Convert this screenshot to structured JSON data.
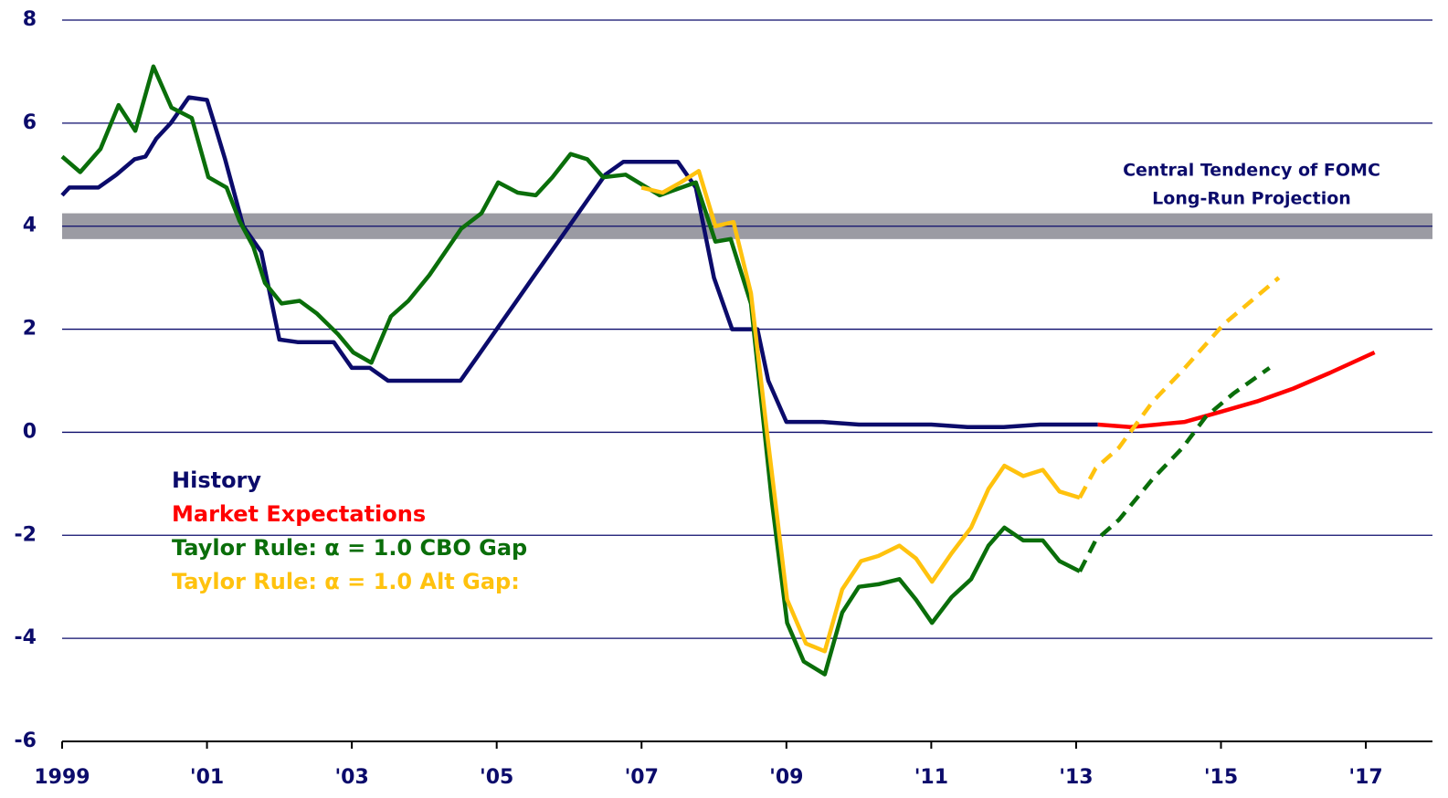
{
  "chart_data": {
    "type": "line",
    "xlim": [
      1999,
      2017.92
    ],
    "ylim": [
      -6,
      8
    ],
    "yticks": [
      -6,
      -4,
      -2,
      0,
      2,
      4,
      6,
      8
    ],
    "xticks": [
      {
        "value": 1999,
        "label": "1999"
      },
      {
        "value": 2001,
        "label": "'01"
      },
      {
        "value": 2003,
        "label": "'03"
      },
      {
        "value": 2005,
        "label": "'05"
      },
      {
        "value": 2007,
        "label": "'07"
      },
      {
        "value": 2009,
        "label": "'09"
      },
      {
        "value": 2011,
        "label": "'11"
      },
      {
        "value": 2013,
        "label": "'13"
      },
      {
        "value": 2015,
        "label": "'15"
      },
      {
        "value": 2017,
        "label": "'17"
      }
    ],
    "grid": true,
    "legend": "center-left",
    "band": {
      "range": [
        3.75,
        4.25
      ],
      "color": "#9b9ba3",
      "label": [
        "Central Tendency of FOMC",
        "Long-Run Projection"
      ]
    },
    "series": [
      {
        "name": "History",
        "color": "#0b0b6b",
        "x": [
          1999,
          1999.1,
          1999.25,
          1999.5,
          1999.75,
          2000,
          2000.15,
          2000.3,
          2000.5,
          2000.75,
          2001,
          2001.1,
          2001.25,
          2001.5,
          2001.75,
          2002,
          2002.25,
          2002.75,
          2003,
          2003.25,
          2003.5,
          2004,
          2004.5,
          2004.75,
          2005,
          2005.25,
          2005.5,
          2005.75,
          2006,
          2006.25,
          2006.5,
          2006.75,
          2007,
          2007.5,
          2007.75,
          2008,
          2008.25,
          2008.6,
          2008.75,
          2009,
          2009.5,
          2010,
          2011,
          2011.5,
          2012,
          2012.5,
          2013,
          2013.3
        ],
        "values": [
          4.6,
          4.75,
          4.75,
          4.75,
          5.0,
          5.3,
          5.35,
          5.7,
          6.0,
          6.5,
          6.45,
          6.0,
          5.3,
          4.0,
          3.5,
          1.8,
          1.75,
          1.75,
          1.25,
          1.25,
          1.0,
          1.0,
          1.0,
          1.5,
          2.0,
          2.5,
          3.0,
          3.5,
          4.0,
          4.5,
          5.0,
          5.25,
          5.25,
          5.25,
          4.75,
          3.0,
          2.0,
          2.0,
          1.0,
          0.2,
          0.2,
          0.15,
          0.15,
          0.1,
          0.1,
          0.15,
          0.15,
          0.15
        ]
      },
      {
        "name": "Market Expectations",
        "color": "#ff0000",
        "x": [
          2013.3,
          2013.75,
          2014.5,
          2015,
          2015.5,
          2016,
          2016.5,
          2017.12
        ],
        "values": [
          0.15,
          0.1,
          0.2,
          0.4,
          0.6,
          0.85,
          1.15,
          1.55
        ]
      },
      {
        "name": "Taylor Rule: α = 1.0 CBO Gap",
        "color": "#0a6e0a",
        "dashed_after": 2013.05,
        "x": [
          1999,
          1999.25,
          1999.53,
          1999.78,
          2000.01,
          2000.26,
          2000.51,
          2000.79,
          2001.02,
          2001.27,
          2001.45,
          2001.64,
          2001.8,
          2002.03,
          2002.28,
          2002.52,
          2002.81,
          2003.02,
          2003.27,
          2003.54,
          2003.78,
          2004.07,
          2004.51,
          2004.79,
          2005.02,
          2005.29,
          2005.54,
          2005.77,
          2006.02,
          2006.25,
          2006.47,
          2006.78,
          2007.25,
          2007.75,
          2008.02,
          2008.23,
          2008.51,
          2008.8,
          2009.01,
          2009.24,
          2009.53,
          2009.77,
          2010,
          2010.27,
          2010.56,
          2010.79,
          2011.01,
          2011.28,
          2011.55,
          2011.79,
          2012.01,
          2012.27,
          2012.54,
          2012.77,
          2013.05,
          2013.27,
          2013.59,
          2014.06,
          2014.47,
          2014.79,
          2015.17,
          2015.67
        ],
        "values": [
          5.35,
          5.05,
          5.5,
          6.35,
          5.85,
          7.1,
          6.3,
          6.1,
          4.95,
          4.75,
          4.1,
          3.6,
          2.9,
          2.5,
          2.55,
          2.3,
          1.9,
          1.55,
          1.35,
          2.25,
          2.55,
          3.05,
          3.95,
          4.25,
          4.85,
          4.65,
          4.6,
          4.95,
          5.4,
          5.3,
          4.95,
          5.0,
          4.6,
          4.85,
          3.7,
          3.75,
          2.5,
          -1.35,
          -3.7,
          -4.45,
          -4.7,
          -3.5,
          -3.0,
          -2.95,
          -2.85,
          -3.25,
          -3.7,
          -3.2,
          -2.85,
          -2.2,
          -1.85,
          -2.1,
          -2.1,
          -2.5,
          -2.7,
          -2.1,
          -1.7,
          -0.9,
          -0.3,
          0.3,
          0.75,
          1.25
        ]
      },
      {
        "name": "Taylor Rule: α = 1.0  Alt Gap:",
        "color": "#ffc20e",
        "dashed_after": 2013.05,
        "x": [
          2007,
          2007.29,
          2007.54,
          2007.79,
          2008.02,
          2008.27,
          2008.51,
          2008.74,
          2009.01,
          2009.27,
          2009.53,
          2009.77,
          2010.03,
          2010.27,
          2010.56,
          2010.79,
          2011.01,
          2011.28,
          2011.55,
          2011.79,
          2012.01,
          2012.27,
          2012.54,
          2012.77,
          2013.05,
          2013.27,
          2013.59,
          2014.06,
          2014.47,
          2015.04,
          2015.8
        ],
        "values": [
          4.75,
          4.65,
          4.85,
          5.07,
          4.0,
          4.08,
          2.7,
          -0.1,
          -3.25,
          -4.1,
          -4.25,
          -3.05,
          -2.5,
          -2.4,
          -2.2,
          -2.45,
          -2.9,
          -2.35,
          -1.85,
          -1.1,
          -0.65,
          -0.85,
          -0.73,
          -1.15,
          -1.27,
          -0.7,
          -0.3,
          0.6,
          1.2,
          2.1,
          3.0
        ]
      }
    ]
  }
}
